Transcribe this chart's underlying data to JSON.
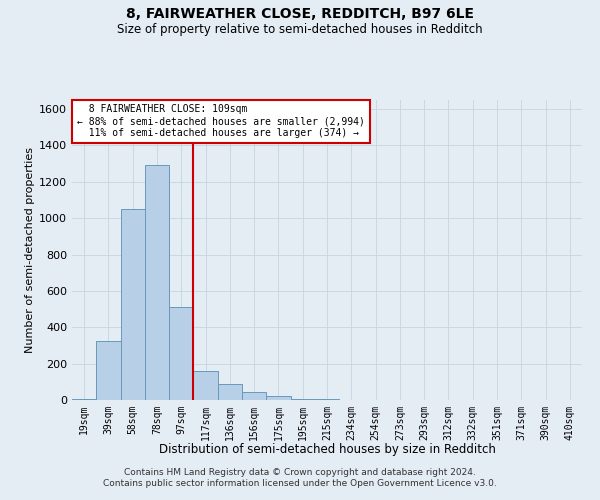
{
  "title": "8, FAIRWEATHER CLOSE, REDDITCH, B97 6LE",
  "subtitle": "Size of property relative to semi-detached houses in Redditch",
  "xlabel": "Distribution of semi-detached houses by size in Redditch",
  "ylabel": "Number of semi-detached properties",
  "footer_line1": "Contains HM Land Registry data © Crown copyright and database right 2024.",
  "footer_line2": "Contains public sector information licensed under the Open Government Licence v3.0.",
  "property_label": "8 FAIRWEATHER CLOSE: 109sqm",
  "smaller_pct": 88,
  "smaller_count": 2994,
  "larger_pct": 11,
  "larger_count": 374,
  "bin_labels": [
    "19sqm",
    "39sqm",
    "58sqm",
    "78sqm",
    "97sqm",
    "117sqm",
    "136sqm",
    "156sqm",
    "175sqm",
    "195sqm",
    "215sqm",
    "234sqm",
    "254sqm",
    "273sqm",
    "293sqm",
    "312sqm",
    "332sqm",
    "351sqm",
    "371sqm",
    "390sqm",
    "410sqm"
  ],
  "bin_values": [
    5,
    325,
    1050,
    1290,
    510,
    160,
    90,
    45,
    20,
    8,
    3,
    1,
    1,
    0,
    0,
    0,
    0,
    0,
    0,
    0,
    0
  ],
  "bar_color": "#b8cfe8",
  "bar_edge_color": "#6699bb",
  "vline_color": "#cc0000",
  "grid_color": "#c8d4e4",
  "background_color": "#e4ecf4",
  "annotation_box_color": "#ffffff",
  "annotation_box_edge": "#cc0000",
  "ylim": [
    0,
    1650
  ],
  "yticks": [
    0,
    200,
    400,
    600,
    800,
    1000,
    1200,
    1400,
    1600
  ],
  "vline_x": 4.5
}
